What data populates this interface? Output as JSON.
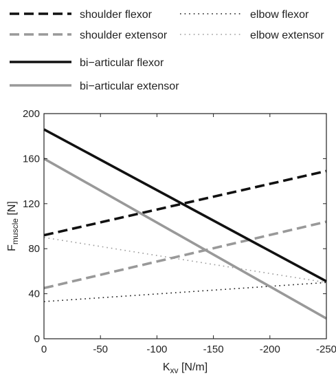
{
  "chart_data": {
    "type": "line",
    "xlabel": "K",
    "xlabel_sub": "xv",
    "xlabel_unit": " [N/m]",
    "ylabel": "F",
    "ylabel_sub": "muscle",
    "ylabel_unit": " [N]",
    "xlim": [
      0,
      -250
    ],
    "ylim": [
      0,
      200
    ],
    "xticks": [
      0,
      -50,
      -100,
      -150,
      -200,
      -250
    ],
    "yticks": [
      0,
      40,
      80,
      120,
      160,
      200
    ],
    "grid": false,
    "legend_position": "top",
    "series": [
      {
        "name": "shoulder flexor",
        "x": [
          0,
          -250
        ],
        "y": [
          92,
          149
        ],
        "color": "#111111",
        "style": "dashed"
      },
      {
        "name": "elbow flexor",
        "x": [
          0,
          -250
        ],
        "y": [
          33,
          50
        ],
        "color": "#111111",
        "style": "dotted"
      },
      {
        "name": "shoulder extensor",
        "x": [
          0,
          -250
        ],
        "y": [
          45,
          104
        ],
        "color": "#999999",
        "style": "dashed"
      },
      {
        "name": "elbow extensor",
        "x": [
          0,
          -250
        ],
        "y": [
          90,
          50
        ],
        "color": "#999999",
        "style": "dotted"
      },
      {
        "name": "bi−articular flexor",
        "x": [
          0,
          -250
        ],
        "y": [
          186,
          51
        ],
        "color": "#111111",
        "style": "solid"
      },
      {
        "name": "bi−articular extensor",
        "x": [
          0,
          -250
        ],
        "y": [
          160,
          18
        ],
        "color": "#999999",
        "style": "solid"
      }
    ]
  }
}
